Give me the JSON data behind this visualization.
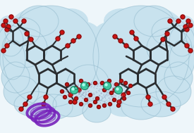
{
  "fig_width": 2.75,
  "fig_height": 1.89,
  "dpi": 100,
  "surface_color": "#c8e2ee",
  "surface_edge_color": "#8ab4c8",
  "stick_color": "#4a5055",
  "stick_dark": "#2a2d30",
  "oxygen_color": "#cc1111",
  "metal_color": "#3ec8a0",
  "small_red_color": "#bb1111",
  "pillar_color": "#7722bb",
  "coord_line_color": "#9999bb",
  "white_bg": "#eef6fa"
}
